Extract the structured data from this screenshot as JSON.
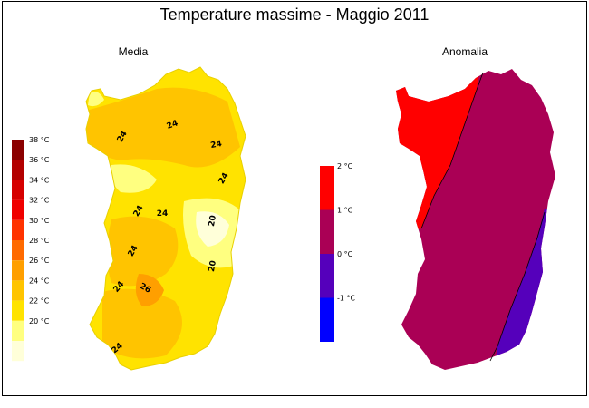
{
  "title": "Temperature massime - Maggio 2011",
  "panels": {
    "media": {
      "title": "Media",
      "legend": [
        "38 °C",
        "36 °C",
        "34 °C",
        "32 °C",
        "30 °C",
        "28 °C",
        "26 °C",
        "24 °C",
        "22 °C",
        "20 °C"
      ],
      "legend_colors": [
        "#8b0000",
        "#b30000",
        "#d60000",
        "#f00000",
        "#ff3300",
        "#ff6a00",
        "#ff9f00",
        "#ffc400",
        "#ffe300",
        "#ffff80",
        "#ffffd9"
      ],
      "contour_labels": [
        "24",
        "24",
        "24",
        "24",
        "24",
        "24",
        "20",
        "20",
        "24",
        "24",
        "26",
        "24"
      ]
    },
    "anomalia": {
      "title": "Anomalia",
      "legend": [
        "2 °C",
        "1 °C",
        "0 °C",
        "-1 °C"
      ],
      "legend_colors": [
        "#ff0000",
        "#aa0055",
        "#5500bb",
        "#0000ff"
      ],
      "region_colors": {
        "plus1_2": "#ff0000",
        "zero_1": "#aa0055",
        "minus": "#5500bb"
      }
    }
  }
}
